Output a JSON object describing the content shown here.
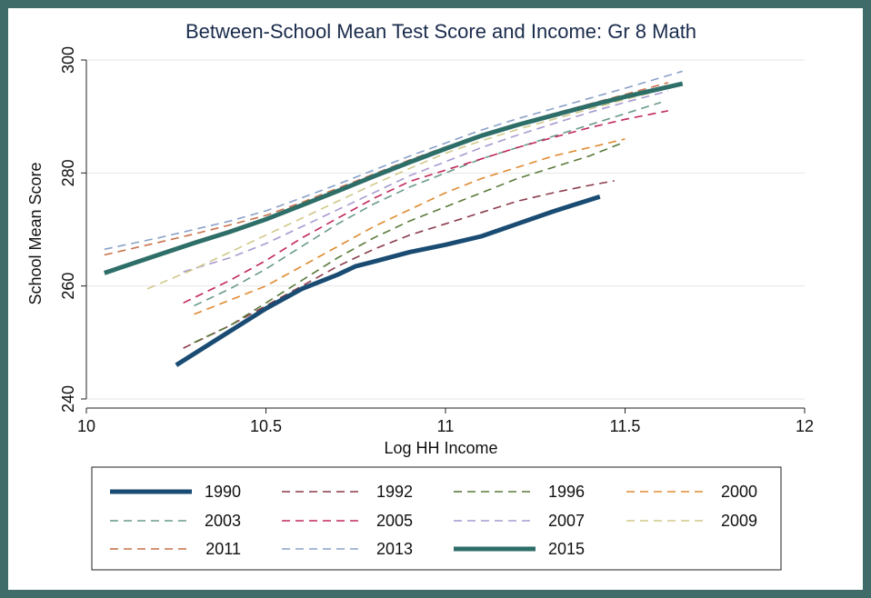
{
  "chart_data": {
    "type": "line",
    "title": "Between-School Mean Test Score and Income: Gr 8 Math",
    "xlabel": "Log HH Income",
    "ylabel": "School Mean Score",
    "xlim": [
      10,
      12
    ],
    "ylim": [
      240,
      300
    ],
    "xticks": [
      "10",
      "10.5",
      "11",
      "11.5",
      "12"
    ],
    "yticks": [
      "240",
      "260",
      "280",
      "300"
    ],
    "grid": true,
    "legend_position": "bottom",
    "series": [
      {
        "name": "1990",
        "color": "#1a4c73",
        "style": "solid-thick",
        "x": [
          10.25,
          10.4,
          10.5,
          10.6,
          10.7,
          10.75,
          10.8,
          10.9,
          11.0,
          11.1,
          11.2,
          11.3,
          11.43
        ],
        "y": [
          246,
          252,
          256,
          259.5,
          262,
          263.5,
          264.3,
          266,
          267.3,
          268.8,
          271,
          273.2,
          275.8
        ]
      },
      {
        "name": "1992",
        "color": "#8a3a4a",
        "style": "dashed",
        "x": [
          10.27,
          10.4,
          10.5,
          10.6,
          10.7,
          10.8,
          10.9,
          11.0,
          11.1,
          11.2,
          11.3,
          11.4,
          11.47
        ],
        "y": [
          249,
          253,
          256.5,
          260,
          263.5,
          266.5,
          269,
          271,
          273,
          275,
          276.5,
          277.8,
          278.6
        ]
      },
      {
        "name": "1996",
        "color": "#5a7a3a",
        "style": "dashed",
        "x": [
          10.3,
          10.4,
          10.5,
          10.6,
          10.7,
          10.8,
          10.9,
          11.0,
          11.1,
          11.2,
          11.3,
          11.4,
          11.5
        ],
        "y": [
          250,
          253,
          257,
          261,
          265,
          268.5,
          271.5,
          274,
          276.5,
          279,
          281,
          283,
          285.5
        ]
      },
      {
        "name": "2000",
        "color": "#e08a30",
        "style": "dashed",
        "x": [
          10.3,
          10.4,
          10.5,
          10.6,
          10.7,
          10.8,
          10.9,
          11.0,
          11.1,
          11.2,
          11.3,
          11.4,
          11.5
        ],
        "y": [
          255,
          257.5,
          260,
          263.5,
          267,
          270.5,
          273.5,
          276.5,
          279,
          281,
          283,
          284.5,
          286
        ]
      },
      {
        "name": "2003",
        "color": "#6a9a8a",
        "style": "dashed",
        "x": [
          10.3,
          10.4,
          10.5,
          10.6,
          10.7,
          10.8,
          10.9,
          11.0,
          11.1,
          11.2,
          11.3,
          11.4,
          11.5,
          11.6
        ],
        "y": [
          256.5,
          259.5,
          263,
          267,
          271,
          274.5,
          277.5,
          280,
          282.5,
          284.5,
          286.5,
          288.5,
          290.5,
          292.5
        ]
      },
      {
        "name": "2005",
        "color": "#c0285a",
        "style": "dashed",
        "x": [
          10.27,
          10.4,
          10.5,
          10.6,
          10.7,
          10.8,
          10.9,
          11.0,
          11.1,
          11.2,
          11.3,
          11.4,
          11.5,
          11.62
        ],
        "y": [
          257,
          261,
          264.5,
          268.5,
          272,
          275.5,
          278.5,
          280.5,
          282.5,
          284.5,
          286.3,
          288,
          289.5,
          291
        ]
      },
      {
        "name": "2007",
        "color": "#a89ad0",
        "style": "dashed",
        "x": [
          10.27,
          10.4,
          10.5,
          10.6,
          10.7,
          10.8,
          10.9,
          11.0,
          11.1,
          11.2,
          11.3,
          11.4,
          11.5,
          11.62
        ],
        "y": [
          262.5,
          265,
          267.5,
          270.5,
          273.5,
          276.5,
          279.5,
          282,
          284.5,
          286.7,
          288.7,
          290.7,
          292.5,
          294.5
        ]
      },
      {
        "name": "2009",
        "color": "#d0c88a",
        "style": "dashed",
        "x": [
          10.17,
          10.3,
          10.4,
          10.5,
          10.6,
          10.7,
          10.8,
          10.9,
          11.0,
          11.1,
          11.2,
          11.3,
          11.4,
          11.5,
          11.65
        ],
        "y": [
          259.5,
          263,
          266,
          269,
          272,
          275,
          278,
          280.8,
          283.5,
          285.7,
          287.7,
          289.5,
          291.3,
          293,
          295.5
        ]
      },
      {
        "name": "2011",
        "color": "#c8704a",
        "style": "dashed",
        "x": [
          10.05,
          10.2,
          10.3,
          10.4,
          10.5,
          10.6,
          10.7,
          10.8,
          10.9,
          11.0,
          11.1,
          11.2,
          11.3,
          11.4,
          11.5,
          11.62
        ],
        "y": [
          265.5,
          267.7,
          269.2,
          270.8,
          272.5,
          274.8,
          277.3,
          279.8,
          282.3,
          284.6,
          286.8,
          288.7,
          290.5,
          292.2,
          293.9,
          296
        ]
      },
      {
        "name": "2013",
        "color": "#8aa0c8",
        "style": "dashed",
        "x": [
          10.05,
          10.2,
          10.3,
          10.4,
          10.5,
          10.6,
          10.7,
          10.8,
          10.9,
          11.0,
          11.1,
          11.2,
          11.3,
          11.4,
          11.5,
          11.66
        ],
        "y": [
          266.5,
          268.5,
          270,
          271.5,
          273.3,
          275.6,
          278,
          280.5,
          283,
          285.3,
          287.6,
          289.6,
          291.4,
          293.2,
          295,
          298
        ]
      },
      {
        "name": "2015",
        "color": "#2e6e68",
        "style": "solid-thick",
        "x": [
          10.05,
          10.2,
          10.3,
          10.4,
          10.5,
          10.6,
          10.7,
          10.8,
          10.9,
          11.0,
          11.1,
          11.2,
          11.3,
          11.4,
          11.5,
          11.66
        ],
        "y": [
          262.3,
          265.5,
          267.6,
          269.6,
          271.8,
          274.3,
          276.8,
          279.4,
          281.9,
          284.3,
          286.6,
          288.5,
          290.2,
          291.9,
          293.5,
          295.8
        ]
      }
    ]
  }
}
